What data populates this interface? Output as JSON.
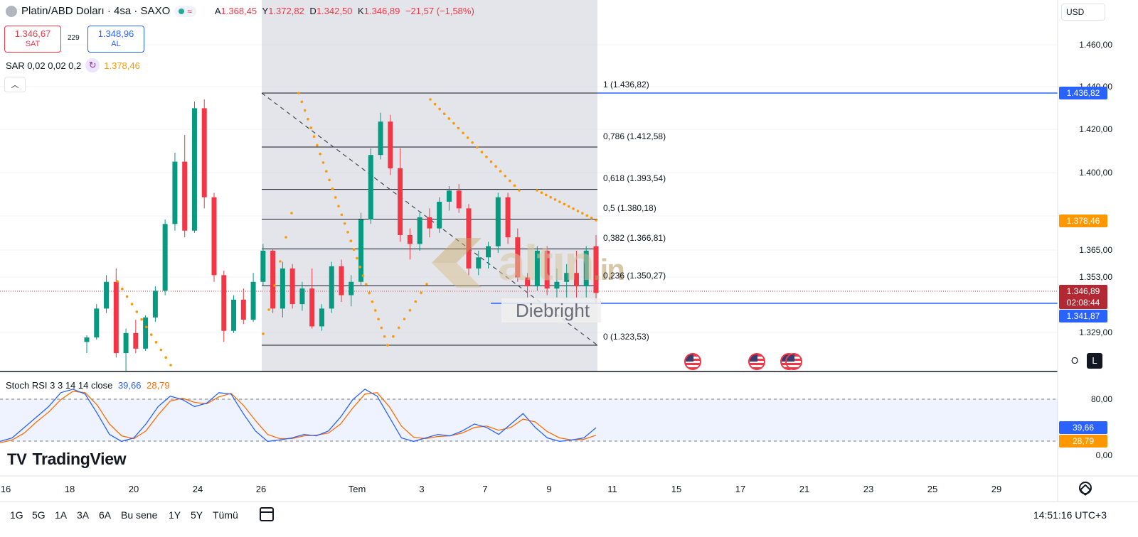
{
  "header": {
    "title": "Platin/ABD Doları · 4sa · SAXO",
    "status_icon": "≈",
    "ohlc": [
      {
        "key": "A",
        "value": "1.368,45"
      },
      {
        "key": "Y",
        "value": "1.372,82"
      },
      {
        "key": "D",
        "value": "1.342,50"
      },
      {
        "key": "K",
        "value": "1.346,89"
      }
    ],
    "change": "−21,57 (−1,58%)"
  },
  "trade": {
    "sell_price": "1.346,67",
    "sell_label": "SAT",
    "spread": "229",
    "buy_price": "1.348,96",
    "buy_label": "AL"
  },
  "indicator_sar": {
    "label": "SAR 0,02 0,02 0,2",
    "value": "1.378,46"
  },
  "price_axis": {
    "currency_button": "USD",
    "labels": [
      "1.460,00",
      "1.440,00",
      "1.420,00",
      "1.400,00",
      "1.380,00",
      "1.365,00",
      "1.353,00",
      "1.329,00"
    ],
    "tags": {
      "fib_top": "1.436,82",
      "sar": "1.378,46",
      "last_price": "1.346,89",
      "countdown": "02:08:44",
      "hline": "1.341,87"
    }
  },
  "fibonacci": [
    {
      "label": "1 (1.436,82)",
      "price": 1436.82
    },
    {
      "label": "0,786 (1.412,58)",
      "price": 1412.58
    },
    {
      "label": "0,618 (1.393,54)",
      "price": 1393.54
    },
    {
      "label": "0,5 (1.380,18)",
      "price": 1380.18
    },
    {
      "label": "0,382 (1.366,81)",
      "price": 1366.81
    },
    {
      "label": "0,236 (1.350,27)",
      "price": 1350.27
    },
    {
      "label": "0 (1.323,53)",
      "price": 1323.53
    }
  ],
  "pane_buttons": {
    "o_label": "O",
    "l_label": "L"
  },
  "stoch_rsi": {
    "label": "Stoch RSI 3 3 14 14 close",
    "k_value": "39,66",
    "d_value": "28,79",
    "axis": [
      "80,00",
      "0,00"
    ]
  },
  "watermark": {
    "brand": "altın",
    "brand_suffix": ".in",
    "credit": "Diebright"
  },
  "tradingview": {
    "logo_mark": "TV",
    "logo_text": "TradingView"
  },
  "time_axis": [
    "16",
    "18",
    "20",
    "24",
    "26",
    "Tem",
    "3",
    "7",
    "9",
    "11",
    "15",
    "17",
    "21",
    "23",
    "25",
    "29"
  ],
  "range_buttons": [
    "1G",
    "5G",
    "1A",
    "3A",
    "6A",
    "Bu sene",
    "1Y",
    "5Y",
    "Tümü"
  ],
  "clock": "14:51:16 UTC+3",
  "colors": {
    "up": "#089981",
    "down": "#f23645",
    "sar": "#ff9800",
    "hline": "#2962ff",
    "stoch_k": "#2962ff",
    "stoch_d": "#ff6d00"
  },
  "chart_data": {
    "type": "candlestick",
    "interval": "4sa",
    "candles": [
      [
        1325,
        1328,
        1320,
        1327
      ],
      [
        1327,
        1342,
        1326,
        1340
      ],
      [
        1340,
        1355,
        1338,
        1352
      ],
      [
        1352,
        1358,
        1318,
        1320
      ],
      [
        1320,
        1331,
        1312,
        1329
      ],
      [
        1329,
        1335,
        1320,
        1322
      ],
      [
        1322,
        1337,
        1321,
        1336
      ],
      [
        1336,
        1350,
        1334,
        1348
      ],
      [
        1348,
        1380,
        1346,
        1378
      ],
      [
        1378,
        1410,
        1375,
        1406
      ],
      [
        1406,
        1418,
        1372,
        1375
      ],
      [
        1375,
        1433,
        1374,
        1430
      ],
      [
        1430,
        1434,
        1385,
        1390
      ],
      [
        1390,
        1392,
        1352,
        1355
      ],
      [
        1355,
        1357,
        1325,
        1330
      ],
      [
        1330,
        1346,
        1329,
        1344
      ],
      [
        1344,
        1349,
        1333,
        1335
      ],
      [
        1335,
        1356,
        1334,
        1352
      ],
      [
        1352,
        1369,
        1350,
        1366
      ],
      [
        1366,
        1367,
        1338,
        1340
      ],
      [
        1340,
        1361,
        1336,
        1358
      ],
      [
        1358,
        1360,
        1340,
        1342
      ],
      [
        1342,
        1352,
        1339,
        1349
      ],
      [
        1349,
        1358,
        1331,
        1332
      ],
      [
        1332,
        1342,
        1330,
        1340
      ],
      [
        1340,
        1361,
        1338,
        1359
      ],
      [
        1359,
        1362,
        1343,
        1346
      ],
      [
        1346,
        1355,
        1341,
        1352
      ],
      [
        1352,
        1383,
        1350,
        1380
      ],
      [
        1380,
        1412,
        1378,
        1409
      ],
      [
        1409,
        1428,
        1407,
        1424
      ],
      [
        1424,
        1427,
        1400,
        1403
      ],
      [
        1403,
        1412,
        1370,
        1373
      ],
      [
        1373,
        1376,
        1362,
        1369
      ],
      [
        1369,
        1383,
        1366,
        1381
      ],
      [
        1381,
        1385,
        1372,
        1376
      ],
      [
        1376,
        1390,
        1374,
        1388
      ],
      [
        1388,
        1395,
        1384,
        1393
      ],
      [
        1393,
        1396,
        1383,
        1385
      ],
      [
        1385,
        1387,
        1355,
        1358
      ],
      [
        1358,
        1366,
        1355,
        1363
      ],
      [
        1363,
        1370,
        1358,
        1368
      ],
      [
        1368,
        1392,
        1365,
        1390
      ],
      [
        1390,
        1392,
        1369,
        1372
      ],
      [
        1372,
        1376,
        1352,
        1354
      ],
      [
        1354,
        1356,
        1345,
        1350
      ],
      [
        1350,
        1368,
        1348,
        1366
      ],
      [
        1366,
        1368,
        1346,
        1349
      ],
      [
        1349,
        1358,
        1345,
        1352
      ],
      [
        1352,
        1360,
        1345,
        1356
      ],
      [
        1356,
        1366,
        1345,
        1350
      ],
      [
        1350,
        1368,
        1345,
        1366
      ],
      [
        1368,
        1373,
        1342,
        1347
      ]
    ],
    "sar_points": [
      1378.46
    ],
    "hline": 1341.87,
    "stoch_k": [
      20,
      25,
      40,
      55,
      70,
      90,
      95,
      88,
      60,
      30,
      20,
      25,
      45,
      70,
      85,
      80,
      70,
      75,
      90,
      88,
      60,
      35,
      20,
      22,
      25,
      30,
      28,
      35,
      55,
      80,
      95,
      85,
      55,
      25,
      20,
      25,
      30,
      28,
      35,
      45,
      40,
      30,
      45,
      60,
      40,
      25,
      20,
      22,
      25,
      39.66
    ],
    "stoch_d": [
      18,
      22,
      32,
      48,
      62,
      80,
      92,
      90,
      72,
      45,
      28,
      24,
      35,
      58,
      78,
      82,
      76,
      74,
      84,
      89,
      72,
      50,
      30,
      24,
      24,
      28,
      29,
      32,
      45,
      68,
      88,
      90,
      70,
      42,
      26,
      24,
      27,
      28,
      32,
      40,
      42,
      36,
      40,
      52,
      48,
      34,
      25,
      22,
      23,
      28.79
    ]
  }
}
